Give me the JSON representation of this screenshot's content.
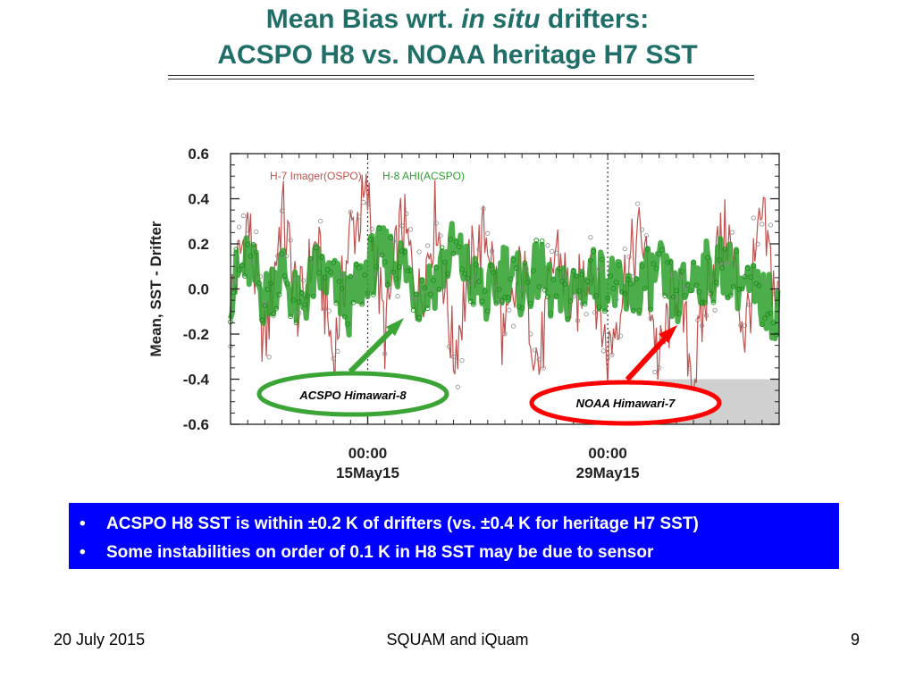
{
  "slide": {
    "title_line1_pre": "Mean Bias wrt. ",
    "title_line1_em": "in situ",
    "title_line1_post": " drifters:",
    "title_line2": "ACSPO H8 vs. NOAA heritage H7 SST"
  },
  "chart_data": {
    "type": "line",
    "ylabel": "Mean,  SST - Drifter",
    "ylim": [
      -0.6,
      0.6
    ],
    "yticks": [
      {
        "value": 0.6,
        "label": "0.6"
      },
      {
        "value": 0.4,
        "label": "0.4"
      },
      {
        "value": 0.2,
        "label": "0.2"
      },
      {
        "value": 0.0,
        "label": "0.0"
      },
      {
        "value": -0.2,
        "label": "-0.2"
      },
      {
        "value": -0.4,
        "label": "-0.4"
      },
      {
        "value": -0.6,
        "label": "-0.6"
      }
    ],
    "xlim": [
      "2015-05-07",
      "2015-06-08"
    ],
    "xticks": [
      {
        "date": "2015-05-15",
        "label1": "00:00",
        "label2": "15May15"
      },
      {
        "date": "2015-05-29",
        "label1": "00:00",
        "label2": "29May15"
      }
    ],
    "legend": [
      {
        "label": "H-7 Imager(OSPO)",
        "color": "#c0504d"
      },
      {
        "label": "H-8 AHI(ACSPO)",
        "color": "#2ca02c"
      }
    ],
    "shaded_region": {
      "x": [
        "2015-06-01",
        "2015-06-08"
      ],
      "y": [
        -0.6,
        -0.4
      ],
      "color": "#d0d0d0"
    },
    "series": [
      {
        "name": "H-8 AHI(ACSPO)",
        "color": "#2ca02c",
        "x": [
          "2015-05-07",
          "2015-05-08",
          "2015-05-09",
          "2015-05-10",
          "2015-05-11",
          "2015-05-12",
          "2015-05-13",
          "2015-05-14",
          "2015-05-15",
          "2015-05-16",
          "2015-05-17",
          "2015-05-18",
          "2015-05-19",
          "2015-05-20",
          "2015-05-21",
          "2015-05-22",
          "2015-05-23",
          "2015-05-24",
          "2015-05-25",
          "2015-05-26",
          "2015-05-27",
          "2015-05-28",
          "2015-05-29",
          "2015-05-30",
          "2015-05-31",
          "2015-06-01",
          "2015-06-02",
          "2015-06-03",
          "2015-06-04",
          "2015-06-05",
          "2015-06-06",
          "2015-06-07",
          "2015-06-08"
        ],
        "y": [
          0.0,
          0.12,
          -0.05,
          0.1,
          -0.1,
          0.08,
          0.02,
          -0.08,
          0.1,
          0.15,
          0.12,
          -0.02,
          0.05,
          0.18,
          0.05,
          -0.05,
          0.1,
          0.0,
          0.08,
          -0.05,
          0.0,
          0.05,
          0.05,
          -0.05,
          0.02,
          0.08,
          -0.05,
          0.05,
          0.08,
          0.1,
          0.0,
          -0.05,
          -0.1
        ]
      },
      {
        "name": "H-7 Imager(OSPO)",
        "color": "#c0504d",
        "x": [
          "2015-05-07",
          "2015-05-08",
          "2015-05-09",
          "2015-05-10",
          "2015-05-11",
          "2015-05-12",
          "2015-05-13",
          "2015-05-14",
          "2015-05-15",
          "2015-05-16",
          "2015-05-17",
          "2015-05-18",
          "2015-05-19",
          "2015-05-20",
          "2015-05-21",
          "2015-05-22",
          "2015-05-23",
          "2015-05-24",
          "2015-05-25",
          "2015-05-26",
          "2015-05-27",
          "2015-05-28",
          "2015-05-29",
          "2015-05-30",
          "2015-05-31",
          "2015-06-01",
          "2015-06-02",
          "2015-06-03",
          "2015-06-04",
          "2015-06-05",
          "2015-06-06",
          "2015-06-07",
          "2015-06-08"
        ],
        "y": [
          -0.05,
          0.3,
          -0.25,
          0.35,
          -0.1,
          0.2,
          -0.3,
          0.25,
          0.4,
          -0.2,
          0.3,
          -0.05,
          0.35,
          -0.3,
          0.1,
          0.25,
          -0.25,
          0.1,
          -0.35,
          0.2,
          -0.1,
          0.15,
          -0.3,
          0.05,
          0.25,
          -0.35,
          0.05,
          -0.4,
          0.1,
          0.25,
          -0.2,
          0.3,
          -0.1
        ]
      }
    ]
  },
  "annotations": {
    "acspo_label": "ACSPO Himawari-8",
    "noaa_label": "NOAA Himawari-7"
  },
  "bullets": [
    "ACSPO H8 SST is within ±0.2 K of drifters (vs. ±0.4 K for heritage H7 SST)",
    "Some instabilities on order of 0.1 K in H8 SST may be due to sensor"
  ],
  "bullet_marker": "•",
  "footer": {
    "date": "20 July 2015",
    "center": "SQUAM and iQuam",
    "page": "9"
  }
}
